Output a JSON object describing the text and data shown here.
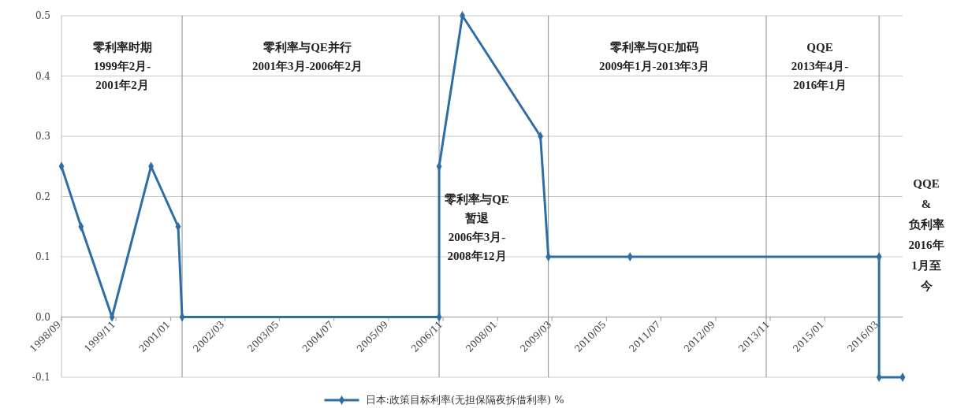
{
  "chart_data": {
    "type": "line",
    "x": [
      "1998-09",
      "1999-02",
      "1999-10",
      "2000-08",
      "2001-03",
      "2001-04",
      "2006-10",
      "2006-10",
      "2007-04",
      "2008-12",
      "2009-02",
      "2010-11",
      "2016-03",
      "2016-03",
      "2016-09"
    ],
    "series": [
      {
        "name": "日本:政策目标利率(无担保隔夜拆借利率) %",
        "color": "#2f6ea5",
        "values": [
          0.25,
          0.15,
          0,
          0.25,
          0.15,
          0,
          0,
          0.25,
          0.5,
          0.3,
          0.1,
          0.1,
          0.1,
          -0.1,
          -0.1
        ]
      }
    ],
    "xlim": [
      "1998-09",
      "2016-09"
    ],
    "xticks": [
      {
        "value": "1998-09",
        "label": "1998/09"
      },
      {
        "value": "1999-11",
        "label": "1999/11"
      },
      {
        "value": "2001-01",
        "label": "2001/01"
      },
      {
        "value": "2002-03",
        "label": "2002/03"
      },
      {
        "value": "2003-05",
        "label": "2003/05"
      },
      {
        "value": "2004-07",
        "label": "2004/07"
      },
      {
        "value": "2005-09",
        "label": "2005/09"
      },
      {
        "value": "2006-11",
        "label": "2006/11"
      },
      {
        "value": "2008-01",
        "label": "2008/01"
      },
      {
        "value": "2009-03",
        "label": "2009/03"
      },
      {
        "value": "2010-05",
        "label": "2010/05"
      },
      {
        "value": "2011-07",
        "label": "2011/07"
      },
      {
        "value": "2012-09",
        "label": "2012/09"
      },
      {
        "value": "2013-11",
        "label": "2013/11"
      },
      {
        "value": "2015-01",
        "label": "2015/01"
      },
      {
        "value": "2016-03",
        "label": "2016/03"
      }
    ],
    "ylim": [
      -0.1,
      0.5
    ],
    "yticks": [
      {
        "value": -0.1,
        "label": "-0.1"
      },
      {
        "value": 0,
        "label": "0.0"
      },
      {
        "value": 0.1,
        "label": "0.1"
      },
      {
        "value": 0.2,
        "label": "0.2"
      },
      {
        "value": 0.3,
        "label": "0.3"
      },
      {
        "value": 0.4,
        "label": "0.4"
      },
      {
        "value": 0.5,
        "label": "0.5"
      }
    ],
    "grid": "y",
    "marker": "diamond",
    "line_style": "solid",
    "legend": "bottom",
    "ref_lines": [
      {
        "axis": "x",
        "value": "2001-04",
        "color": "#8c8c8c"
      },
      {
        "axis": "x",
        "value": "2006-10",
        "color": "#8c8c8c"
      },
      {
        "axis": "x",
        "value": "2009-02",
        "color": "#8c8c8c"
      },
      {
        "axis": "x",
        "value": "2013-10",
        "color": "#8c8c8c"
      },
      {
        "axis": "x",
        "value": "2016-03",
        "color": "#8c8c8c"
      }
    ],
    "annotations": [
      "零利率时期",
      "1999年2月-2001年2月",
      "零利率与QE并行",
      "2001年3月-2006年2月",
      "零利率与QE加码",
      "2009年1月-2013年3月",
      "QQE",
      "2013年4月-2016年1月",
      "零利率与QE暂退",
      "2006年3月-2008年12月",
      "QQE",
      "&",
      "负利率",
      "2016年1月至今"
    ]
  }
}
